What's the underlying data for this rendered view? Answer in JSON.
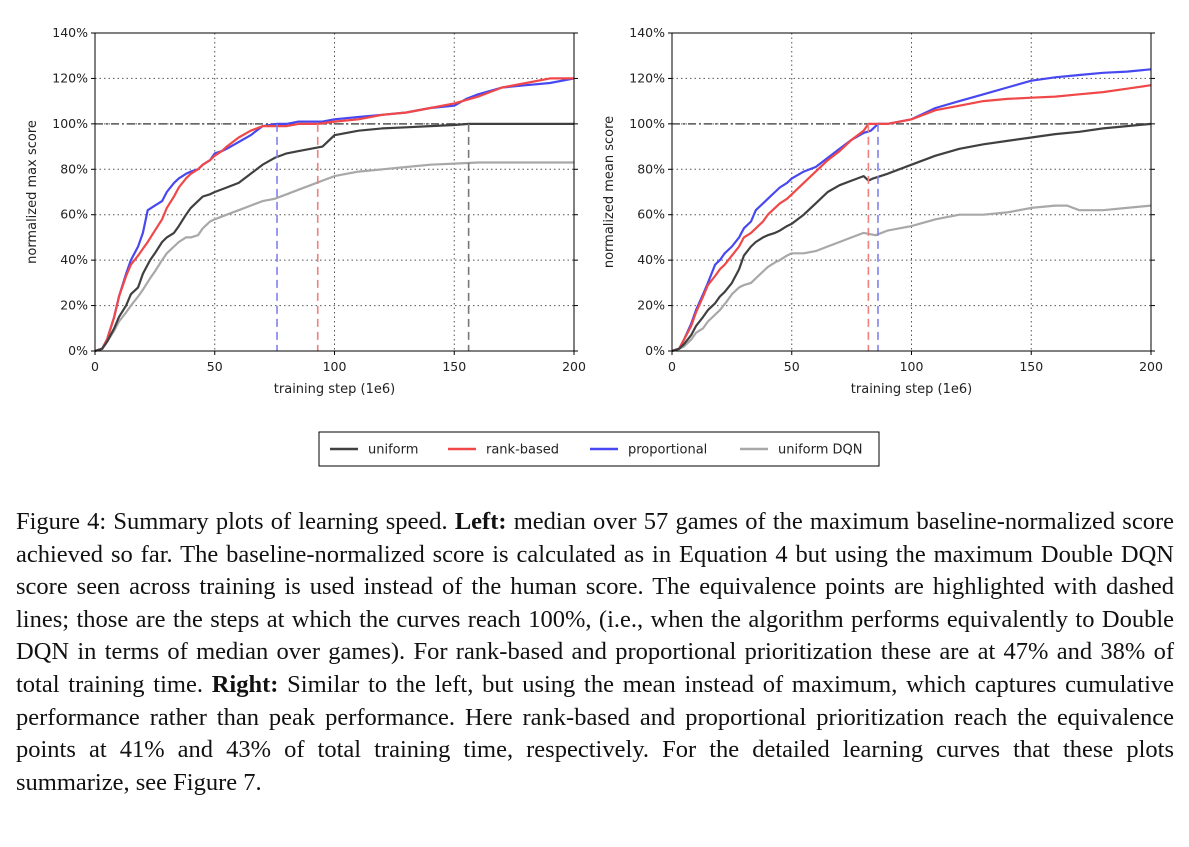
{
  "chart_data": [
    {
      "type": "line",
      "ylabel": "normalized max score",
      "xlabel": "training step (1e6)",
      "xlim": [
        0,
        200
      ],
      "ylim": [
        0,
        140
      ],
      "x_ticks": [
        0,
        50,
        100,
        150,
        200
      ],
      "y_ticks": [
        0,
        20,
        40,
        60,
        80,
        100,
        120,
        140
      ],
      "y_tick_labels": [
        "0%",
        "20%",
        "40%",
        "60%",
        "80%",
        "100%",
        "120%",
        "140%"
      ],
      "x_tick_labels": [
        "0",
        "50",
        "100",
        "150",
        "200"
      ],
      "reference_line": 100,
      "equivalence_points": [
        {
          "series": "proportional",
          "x": 76
        },
        {
          "series": "rank-based",
          "x": 93
        },
        {
          "series": "uniform",
          "x": 156
        }
      ],
      "series": [
        {
          "name": "uniform",
          "color": "#404040",
          "x": [
            0,
            3,
            5,
            8,
            10,
            13,
            15,
            18,
            20,
            23,
            25,
            28,
            30,
            33,
            35,
            38,
            40,
            43,
            45,
            48,
            50,
            55,
            60,
            65,
            70,
            75,
            80,
            85,
            90,
            95,
            100,
            110,
            120,
            130,
            140,
            150,
            156,
            160,
            180,
            200
          ],
          "y": [
            0,
            1,
            4,
            10,
            15,
            20,
            25,
            28,
            34,
            40,
            43,
            48,
            50,
            52,
            55,
            60,
            63,
            66,
            68,
            69,
            70,
            72,
            74,
            78,
            82,
            85,
            87,
            88,
            89,
            90,
            95,
            97,
            98,
            98.5,
            99,
            99.5,
            100,
            100,
            100,
            100
          ]
        },
        {
          "name": "rank-based",
          "color": "#f04848",
          "x": [
            0,
            3,
            5,
            8,
            10,
            13,
            15,
            18,
            20,
            22,
            25,
            28,
            30,
            33,
            35,
            38,
            40,
            43,
            45,
            48,
            50,
            53,
            55,
            60,
            65,
            70,
            75,
            80,
            85,
            90,
            93,
            100,
            110,
            120,
            130,
            140,
            150,
            160,
            170,
            180,
            190,
            200
          ],
          "y": [
            0,
            1,
            5,
            15,
            24,
            33,
            38,
            42,
            45,
            48,
            53,
            58,
            63,
            68,
            72,
            76,
            78,
            80,
            82,
            84,
            86,
            88,
            90,
            94,
            97,
            99,
            99,
            99,
            100,
            100,
            100,
            101,
            102,
            104,
            105,
            107,
            109,
            112,
            116,
            118,
            120,
            120
          ]
        },
        {
          "name": "proportional",
          "color": "#4848f0",
          "x": [
            0,
            3,
            5,
            8,
            10,
            13,
            15,
            18,
            20,
            22,
            25,
            28,
            30,
            33,
            35,
            38,
            40,
            43,
            45,
            48,
            50,
            53,
            55,
            60,
            65,
            70,
            76,
            80,
            85,
            90,
            95,
            100,
            110,
            120,
            130,
            140,
            150,
            155,
            160,
            170,
            180,
            190,
            200
          ],
          "y": [
            0,
            1,
            5,
            15,
            24,
            34,
            40,
            46,
            52,
            62,
            64,
            66,
            70,
            74,
            76,
            78,
            79,
            80,
            82,
            84,
            87,
            88,
            89,
            92,
            95,
            99,
            100,
            100,
            101,
            101,
            101,
            102,
            103,
            104,
            105,
            107,
            108,
            111,
            113,
            116,
            117,
            118,
            120
          ]
        },
        {
          "name": "uniform DQN",
          "color": "#a8a8a8",
          "x": [
            0,
            3,
            5,
            8,
            10,
            13,
            15,
            18,
            20,
            23,
            25,
            28,
            30,
            33,
            35,
            38,
            40,
            43,
            45,
            48,
            50,
            55,
            60,
            65,
            70,
            75,
            80,
            85,
            90,
            95,
            100,
            110,
            120,
            130,
            140,
            150,
            160,
            170,
            180,
            190,
            200
          ],
          "y": [
            0,
            1,
            4,
            9,
            13,
            17,
            20,
            24,
            27,
            32,
            35,
            40,
            43,
            46,
            48,
            50,
            50,
            51,
            54,
            57,
            58,
            60,
            62,
            64,
            66,
            67,
            69,
            71,
            73,
            75,
            77,
            79,
            80,
            81,
            82,
            82.5,
            83,
            83,
            83,
            83,
            83
          ]
        }
      ]
    },
    {
      "type": "line",
      "ylabel": "normalized mean score",
      "xlabel": "training step (1e6)",
      "xlim": [
        0,
        200
      ],
      "ylim": [
        0,
        140
      ],
      "x_ticks": [
        0,
        50,
        100,
        150,
        200
      ],
      "y_ticks": [
        0,
        20,
        40,
        60,
        80,
        100,
        120,
        140
      ],
      "y_tick_labels": [
        "0%",
        "20%",
        "40%",
        "60%",
        "80%",
        "100%",
        "120%",
        "140%"
      ],
      "x_tick_labels": [
        "0",
        "50",
        "100",
        "150",
        "200"
      ],
      "reference_line": 100,
      "equivalence_points": [
        {
          "series": "rank-based",
          "x": 82
        },
        {
          "series": "proportional",
          "x": 86
        }
      ],
      "series": [
        {
          "name": "uniform",
          "color": "#404040",
          "x": [
            0,
            3,
            5,
            8,
            10,
            13,
            15,
            18,
            20,
            22,
            25,
            28,
            30,
            33,
            35,
            38,
            40,
            43,
            45,
            48,
            50,
            55,
            60,
            65,
            70,
            75,
            80,
            82,
            84,
            90,
            100,
            110,
            120,
            130,
            140,
            150,
            160,
            170,
            180,
            190,
            200
          ],
          "y": [
            0,
            1,
            3,
            7,
            11,
            15,
            18,
            21,
            24,
            26,
            30,
            36,
            42,
            46,
            48,
            50,
            51,
            52,
            53,
            55,
            56,
            60,
            65,
            70,
            73,
            75,
            77,
            75,
            76,
            78,
            82,
            86,
            89,
            91,
            92.5,
            94,
            95.5,
            96.5,
            98,
            99,
            100
          ]
        },
        {
          "name": "rank-based",
          "color": "#f04848",
          "x": [
            0,
            3,
            5,
            8,
            10,
            13,
            15,
            18,
            20,
            22,
            25,
            28,
            30,
            33,
            35,
            38,
            40,
            43,
            45,
            48,
            50,
            55,
            60,
            65,
            70,
            75,
            80,
            82,
            85,
            90,
            100,
            110,
            120,
            130,
            140,
            150,
            160,
            170,
            180,
            190,
            200
          ],
          "y": [
            0,
            1,
            5,
            11,
            17,
            24,
            29,
            33,
            36,
            38,
            42,
            46,
            50,
            52,
            54,
            57,
            60,
            63,
            65,
            67,
            69,
            74,
            79,
            84,
            88,
            93,
            97,
            100,
            100,
            100,
            102,
            106,
            108,
            110,
            111,
            111.5,
            112,
            113,
            114,
            115.5,
            117
          ]
        },
        {
          "name": "proportional",
          "color": "#4848f0",
          "x": [
            0,
            3,
            5,
            8,
            10,
            13,
            15,
            18,
            20,
            22,
            25,
            28,
            30,
            33,
            35,
            38,
            40,
            43,
            45,
            48,
            50,
            55,
            60,
            65,
            70,
            75,
            80,
            83,
            86,
            90,
            100,
            110,
            120,
            130,
            140,
            150,
            160,
            170,
            180,
            190,
            200
          ],
          "y": [
            0,
            1,
            5,
            12,
            18,
            25,
            30,
            38,
            40,
            43,
            46,
            50,
            54,
            57,
            62,
            65,
            67,
            70,
            72,
            74,
            76,
            79,
            81,
            85,
            89,
            93,
            96,
            97,
            100,
            100,
            102,
            107,
            110,
            113,
            116,
            119,
            120.5,
            121.5,
            122.5,
            123,
            124
          ]
        },
        {
          "name": "uniform DQN",
          "color": "#a8a8a8",
          "x": [
            0,
            3,
            5,
            8,
            10,
            13,
            15,
            18,
            20,
            23,
            25,
            28,
            30,
            33,
            35,
            38,
            40,
            43,
            45,
            48,
            50,
            55,
            60,
            65,
            70,
            75,
            80,
            85,
            90,
            95,
            100,
            110,
            120,
            130,
            140,
            150,
            160,
            165,
            170,
            180,
            190,
            200
          ],
          "y": [
            0,
            1,
            2,
            5,
            8,
            10,
            13,
            16,
            18,
            22,
            25,
            28,
            29,
            30,
            32,
            35,
            37,
            39,
            40,
            42,
            43,
            43,
            44,
            46,
            48,
            50,
            52,
            51,
            53,
            54,
            55,
            58,
            60,
            60,
            61,
            63,
            64,
            64,
            62,
            62,
            63,
            64
          ]
        }
      ]
    }
  ],
  "legend": [
    {
      "label": "uniform",
      "color": "#404040"
    },
    {
      "label": "rank-based",
      "color": "#f04848"
    },
    {
      "label": "proportional",
      "color": "#4848f0"
    },
    {
      "label": "uniform DQN",
      "color": "#a8a8a8"
    }
  ],
  "caption": {
    "prefix": "Figure 4:  Summary plots of learning speed. ",
    "left_bold": "Left:",
    "left_text": " median over 57 games of the maximum baseline-normalized score achieved so far. The baseline-normalized score is calculated as in Equation 4 but using the maximum Double DQN score seen across training is used instead of the human score. The equivalence points are highlighted with dashed lines; those are the steps at which the curves reach 100%, (i.e., when the algorithm performs equivalently to Double DQN in terms of median over games). For rank-based and proportional prioritization these are at 47% and 38% of total training time. ",
    "right_bold": "Right:",
    "right_text": " Similar to the left, but using the mean instead of maximum, which captures cumulative performance rather than peak performance. Here rank-based and proportional prioritization reach the equivalence points at 41% and 43% of total training time, respectively. For the detailed learning curves that these plots summarize, see Figure 7."
  }
}
